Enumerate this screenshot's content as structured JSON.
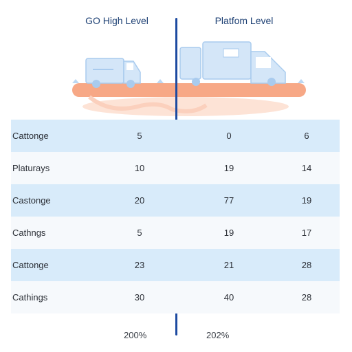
{
  "headers": {
    "left": "GO High Level",
    "right": "Platfom Level"
  },
  "rows": [
    {
      "label": "Cattonge",
      "values": [
        "5",
        "0",
        "6"
      ]
    },
    {
      "label": "Platurays",
      "values": [
        "10",
        "19",
        "14"
      ]
    },
    {
      "label": "Castonge",
      "values": [
        "20",
        "77",
        "19"
      ]
    },
    {
      "label": "Cathngs",
      "values": [
        "5",
        "19",
        "17"
      ]
    },
    {
      "label": "Cattonge",
      "values": [
        "23",
        "21",
        "28"
      ]
    },
    {
      "label": "Cathings",
      "values": [
        "30",
        "40",
        "28"
      ]
    }
  ],
  "footer": {
    "left": "200%",
    "right": "202%"
  },
  "colors": {
    "divider": "#1c4aa0",
    "row_shaded": "#d8ebfa",
    "row_plain": "#f6f9fc",
    "platform": "#f7a886",
    "vehicles": "#bcd8f3"
  },
  "icons": [
    "van-icon",
    "truck-icon",
    "platform-icon"
  ]
}
